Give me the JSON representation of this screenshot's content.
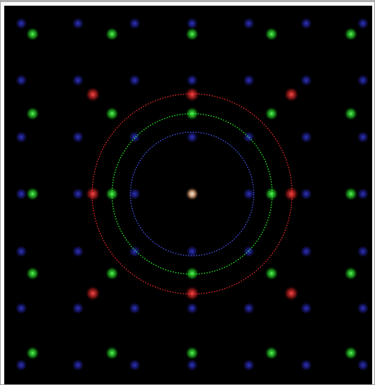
{
  "image": {
    "background": "#000000",
    "spot_colors": {
      "blue": "#2a2fd0",
      "green": "#22cc22",
      "red": "#d42424",
      "center": "#ffe6c8"
    },
    "ring_colors": {
      "inner": "#4a5cff",
      "middle": "#22ff22",
      "outer": "#ff2a2a"
    }
  }
}
